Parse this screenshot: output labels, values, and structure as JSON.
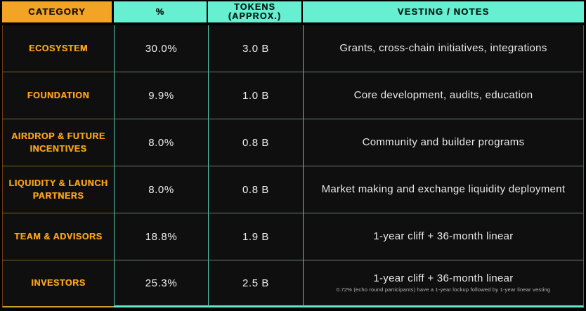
{
  "meta": {
    "description": "Token allocation and vesting schedule table"
  },
  "colors": {
    "background": "#000000",
    "cell_background": "#0F0F0F",
    "accent_orange": "#F4A425",
    "accent_teal": "#66EFD0",
    "category_text": "#F7A01B",
    "value_text": "#EFEFEF",
    "header_text_dark": "#121212",
    "category_border": "#C9A12C",
    "teal_border": "#5EEAC9"
  },
  "header": {
    "category": "CATEGORY",
    "percent": "%",
    "tokens_line1": "TOKENS",
    "tokens_line2": "(APPROX.)",
    "vesting": "VESTING / NOTES"
  },
  "rows": [
    {
      "category": "ECOSYSTEM",
      "percent": "30.0%",
      "tokens": "3.0 B",
      "notes": "Grants, cross-chain initiatives, integrations"
    },
    {
      "category": "FOUNDATION",
      "percent": "9.9%",
      "tokens": "1.0 B",
      "notes": "Core development, audits, education"
    },
    {
      "category": "AIRDROP & FUTURE INCENTIVES",
      "percent": "8.0%",
      "tokens": "0.8 B",
      "notes": "Community and builder programs"
    },
    {
      "category": "LIQUIDITY & LAUNCH PARTNERS",
      "percent": "8.0%",
      "tokens": "0.8 B",
      "notes": "Market making and exchange liquidity deployment"
    },
    {
      "category": "TEAM & ADVISORS",
      "percent": "18.8%",
      "tokens": "1.9 B",
      "notes": "1-year cliff + 36-month linear"
    },
    {
      "category": "INVESTORS",
      "percent": "25.3%",
      "tokens": "2.5 B",
      "notes": "1-year cliff + 36-month linear",
      "subnote": "0.72% (echo round participants) have a 1-year lockup followed by 1-year linear vesting"
    }
  ],
  "chart_data": {
    "type": "table",
    "columns": [
      "CATEGORY",
      "%",
      "TOKENS (APPROX.)",
      "VESTING / NOTES"
    ],
    "rows": [
      [
        "ECOSYSTEM",
        "30.0%",
        "3.0 B",
        "Grants, cross-chain initiatives, integrations"
      ],
      [
        "FOUNDATION",
        "9.9%",
        "1.0 B",
        "Core development, audits, education"
      ],
      [
        "AIRDROP & FUTURE INCENTIVES",
        "8.0%",
        "0.8 B",
        "Community and builder programs"
      ],
      [
        "LIQUIDITY & LAUNCH PARTNERS",
        "8.0%",
        "0.8 B",
        "Market making and exchange liquidity deployment"
      ],
      [
        "TEAM & ADVISORS",
        "18.8%",
        "1.9 B",
        "1-year cliff + 36-month linear"
      ],
      [
        "INVESTORS",
        "25.3%",
        "2.5 B",
        "1-year cliff + 36-month linear"
      ]
    ],
    "percent_values": [
      30.0,
      9.9,
      8.0,
      8.0,
      18.8,
      25.3
    ],
    "token_billions": [
      3.0,
      1.0,
      0.8,
      0.8,
      1.9,
      2.5
    ],
    "footnote": "0.72% (echo round participants) have a 1-year lockup followed by 1-year linear vesting",
    "legend_position": "none",
    "grid": true
  }
}
